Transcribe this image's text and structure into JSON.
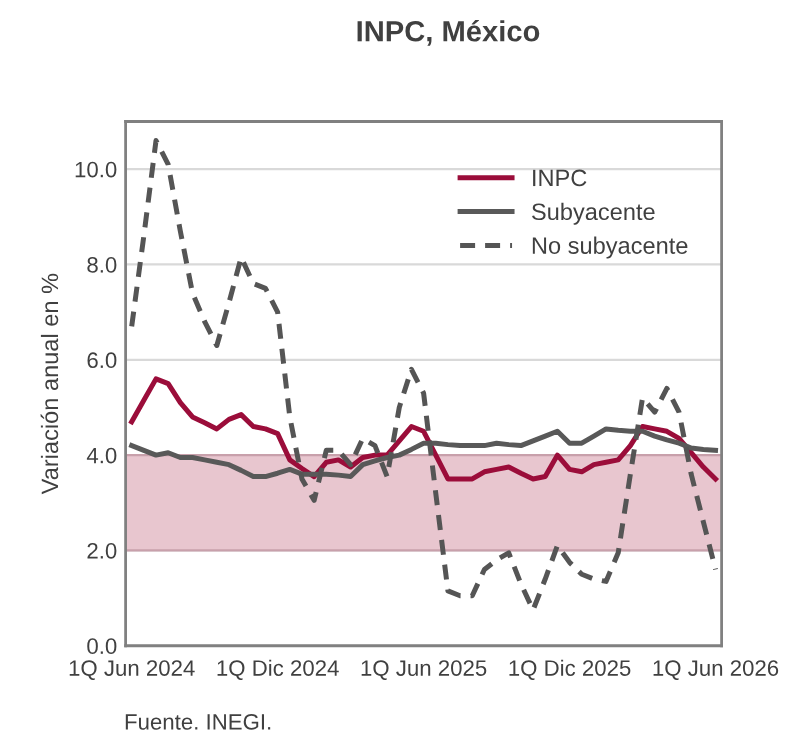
{
  "chart_data": {
    "type": "line",
    "title": "INPC, México",
    "ylabel": "Variación anual en %",
    "annotations": [
      "Fuente. INEGI."
    ],
    "categories": [
      "1Q Jun 2024",
      null,
      null,
      null,
      null,
      null,
      null,
      null,
      null,
      null,
      null,
      null,
      "1Q Dic 2024",
      null,
      null,
      null,
      null,
      null,
      null,
      null,
      null,
      null,
      null,
      null,
      "1Q Jun 2025",
      null,
      null,
      null,
      null,
      null,
      null,
      null,
      null,
      null,
      null,
      null,
      "1Q Dic 2025",
      null,
      null,
      null,
      null,
      null,
      null,
      null,
      null,
      null,
      null,
      null,
      "1Q Jun 2026"
    ],
    "ylim": [
      0,
      11
    ],
    "yticks": [
      {
        "value": 0,
        "label": "0.0"
      },
      {
        "value": 2,
        "label": "2.0"
      },
      {
        "value": 4,
        "label": "4.0"
      },
      {
        "value": 6,
        "label": "6.0"
      },
      {
        "value": 8,
        "label": "8.0"
      },
      {
        "value": 10,
        "label": "10.0"
      }
    ],
    "grid": "y",
    "legend": "top right",
    "bands": [
      {
        "axis": "y",
        "from": 2,
        "to": 4,
        "color": "#e8c6cf"
      }
    ],
    "series": [
      {
        "name": "INPC",
        "color": "#9b0d3a",
        "line_style": "solid",
        "values": [
          4.7,
          5.15,
          5.6,
          5.5,
          5.1,
          4.8,
          4.68,
          4.55,
          4.75,
          4.85,
          4.6,
          4.55,
          4.45,
          3.9,
          3.72,
          3.55,
          3.85,
          3.9,
          3.75,
          3.95,
          4.0,
          4.0,
          4.3,
          4.6,
          4.5,
          4.0,
          3.5,
          3.5,
          3.5,
          3.65,
          3.7,
          3.75,
          3.62,
          3.5,
          3.55,
          4.0,
          3.7,
          3.65,
          3.8,
          3.85,
          3.9,
          4.2,
          4.6,
          4.55,
          4.5,
          4.35,
          4.05,
          3.75,
          3.5
        ]
      },
      {
        "name": "Subyacente",
        "color": "#595959",
        "line_style": "solid",
        "values": [
          4.2,
          4.1,
          4.0,
          4.05,
          3.95,
          3.95,
          3.9,
          3.85,
          3.8,
          3.68,
          3.55,
          3.55,
          3.62,
          3.7,
          3.6,
          3.6,
          3.6,
          3.58,
          3.55,
          3.8,
          3.88,
          3.95,
          4.0,
          4.12,
          4.25,
          4.25,
          4.22,
          4.2,
          4.2,
          4.2,
          4.25,
          4.22,
          4.2,
          4.3,
          4.4,
          4.5,
          4.25,
          4.25,
          4.4,
          4.55,
          4.52,
          4.5,
          4.5,
          4.4,
          4.32,
          4.25,
          4.15,
          4.12,
          4.1
        ]
      },
      {
        "name": "No subyacente",
        "color": "#555555",
        "line_style": "dashed",
        "values": [
          6.7,
          8.6,
          10.6,
          10.1,
          8.7,
          7.4,
          6.8,
          6.3,
          7.2,
          8.15,
          7.6,
          7.5,
          7.0,
          4.8,
          3.5,
          3.05,
          4.1,
          4.1,
          3.8,
          4.35,
          4.2,
          3.55,
          5.0,
          5.8,
          5.3,
          3.2,
          1.15,
          1.05,
          1.05,
          1.6,
          1.8,
          1.95,
          1.3,
          0.75,
          1.4,
          2.1,
          1.75,
          1.5,
          1.4,
          1.35,
          1.95,
          3.6,
          5.2,
          4.9,
          5.4,
          4.9,
          3.6,
          2.6,
          1.6
        ]
      }
    ]
  }
}
